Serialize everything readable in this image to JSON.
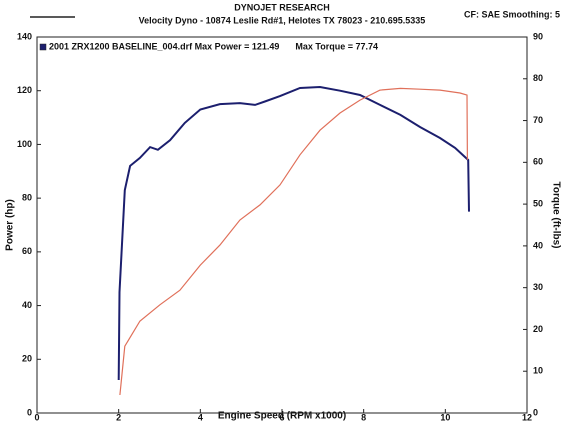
{
  "chart_data": {
    "type": "line",
    "title": "DYNOJET RESEARCH",
    "subtitle": "Velocity Dyno - 10874 Leslie Rd#1, Helotes TX 78023 - 210.695.5335",
    "corner_note": "CF: SAE  Smoothing: 5",
    "x_label": "Engine Speed (RPM x1000)",
    "y_label": "Power (hp)",
    "y2_label": "Torque (ft-lbs)",
    "xlim": [
      0,
      12
    ],
    "xticks": [
      0,
      2,
      4,
      6,
      8,
      10,
      12
    ],
    "ylim": [
      0,
      140
    ],
    "yticks": [
      0,
      20,
      40,
      60,
      80,
      100,
      120,
      140
    ],
    "y2lim": [
      0,
      90
    ],
    "y2ticks": [
      0,
      10,
      20,
      30,
      40,
      50,
      60,
      70,
      80,
      90
    ],
    "grid": false,
    "series": [
      {
        "name": "2001 ZRX1200 BASELINE_004.drf Max Power = 121.49",
        "color": "#1c1f6e",
        "x": [
          2.0,
          2.02,
          2.15,
          2.28,
          2.52,
          2.77,
          2.96,
          3.26,
          3.62,
          4.0,
          4.48,
          4.97,
          5.34,
          5.58,
          5.95,
          6.44,
          6.93,
          7.42,
          7.91,
          8.4,
          8.9,
          9.38,
          9.87,
          10.24,
          10.56,
          10.58
        ],
        "values": [
          12.3,
          45,
          83,
          92,
          95,
          99,
          98,
          101.6,
          108,
          113,
          115,
          115.4,
          114.7,
          116,
          118,
          121,
          121.4,
          120,
          118.4,
          114.7,
          111,
          106.5,
          102.4,
          98.7,
          94.2,
          75
        ]
      },
      {
        "name": "Max Torque = 77.74",
        "color": "#e0705a",
        "axis": "y2",
        "x": [
          2.03,
          2.15,
          2.52,
          3.01,
          3.5,
          4.0,
          4.48,
          4.97,
          5.46,
          5.95,
          6.44,
          6.93,
          7.42,
          7.91,
          8.4,
          8.9,
          9.38,
          9.87,
          10.36,
          10.53,
          10.54
        ],
        "values": [
          4.3,
          16,
          22,
          25.9,
          29.4,
          35.4,
          40.2,
          46.2,
          49.8,
          54.6,
          61.8,
          67.7,
          71.8,
          74.9,
          77.3,
          77.7,
          77.5,
          77.3,
          76.6,
          76.1,
          60.6
        ]
      }
    ]
  }
}
